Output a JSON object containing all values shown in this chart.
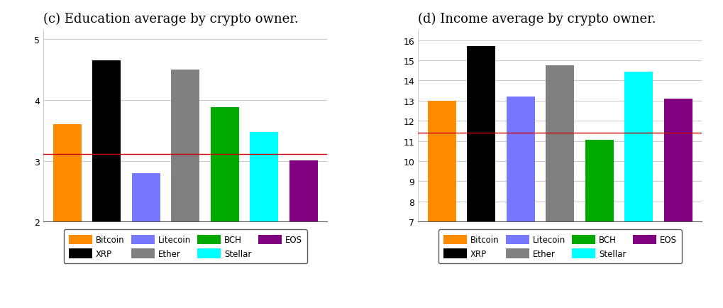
{
  "left_title": "(c) Education average by crypto owner.",
  "right_title": "(d) Income average by crypto owner.",
  "bar_order": [
    "Bitcoin",
    "XRP",
    "Litecoin",
    "Ether",
    "BCH",
    "Stellar",
    "EOS"
  ],
  "colors": {
    "Bitcoin": "#FF8C00",
    "XRP": "#000000",
    "Litecoin": "#7777FF",
    "Ether": "#808080",
    "BCH": "#00AA00",
    "Stellar": "#00FFFF",
    "EOS": "#800080"
  },
  "left_values": [
    3.6,
    4.65,
    2.8,
    4.5,
    3.88,
    3.47,
    3.01
  ],
  "right_values": [
    13.0,
    15.7,
    13.2,
    14.75,
    11.05,
    14.45,
    13.1
  ],
  "left_hline": 3.11,
  "right_hline": 11.4,
  "left_ylim": [
    2,
    5.15
  ],
  "right_ylim": [
    7,
    16.5
  ],
  "left_yticks": [
    2,
    3,
    4,
    5
  ],
  "right_yticks": [
    7,
    8,
    9,
    10,
    11,
    12,
    13,
    14,
    15,
    16
  ],
  "hline_color": "#CC0000",
  "legend_row1": [
    "Bitcoin",
    "XRP",
    "Litecoin",
    "Ether"
  ],
  "legend_row2": [
    "BCH",
    "Stellar",
    "EOS"
  ],
  "bar_width": 0.72,
  "title_fontsize": 13,
  "tick_fontsize": 9,
  "legend_fontsize": 8.5,
  "grid_color": "#cccccc",
  "spine_color": "#555555"
}
